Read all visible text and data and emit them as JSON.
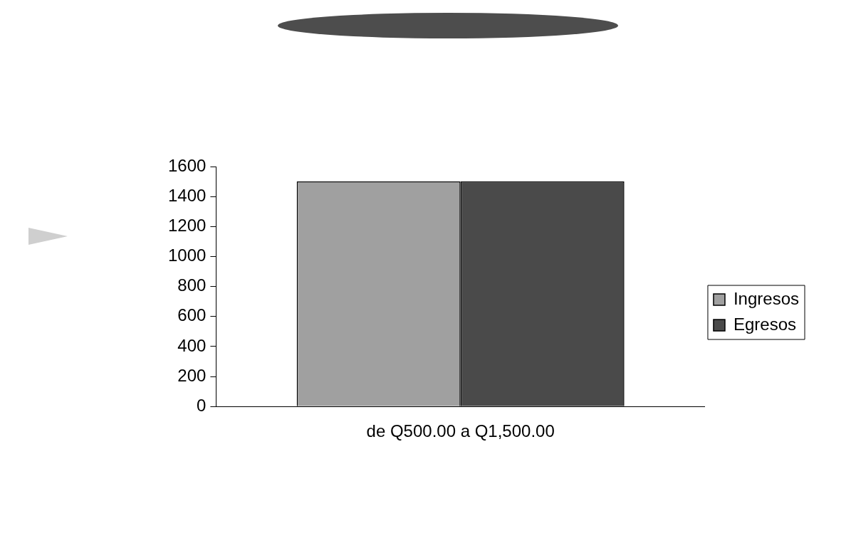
{
  "chart_data": {
    "type": "bar",
    "categories": [
      "de Q500.00 a Q1,500.00"
    ],
    "series": [
      {
        "name": "Ingresos",
        "color": "#a0a0a0",
        "values": [
          1500
        ]
      },
      {
        "name": "Egresos",
        "color": "#4a4a4a",
        "values": [
          1500
        ]
      }
    ],
    "ylim": [
      0,
      1600
    ],
    "yticks": [
      0,
      200,
      400,
      600,
      800,
      1000,
      1200,
      1400,
      1600
    ],
    "grid": false,
    "legend": "right"
  }
}
